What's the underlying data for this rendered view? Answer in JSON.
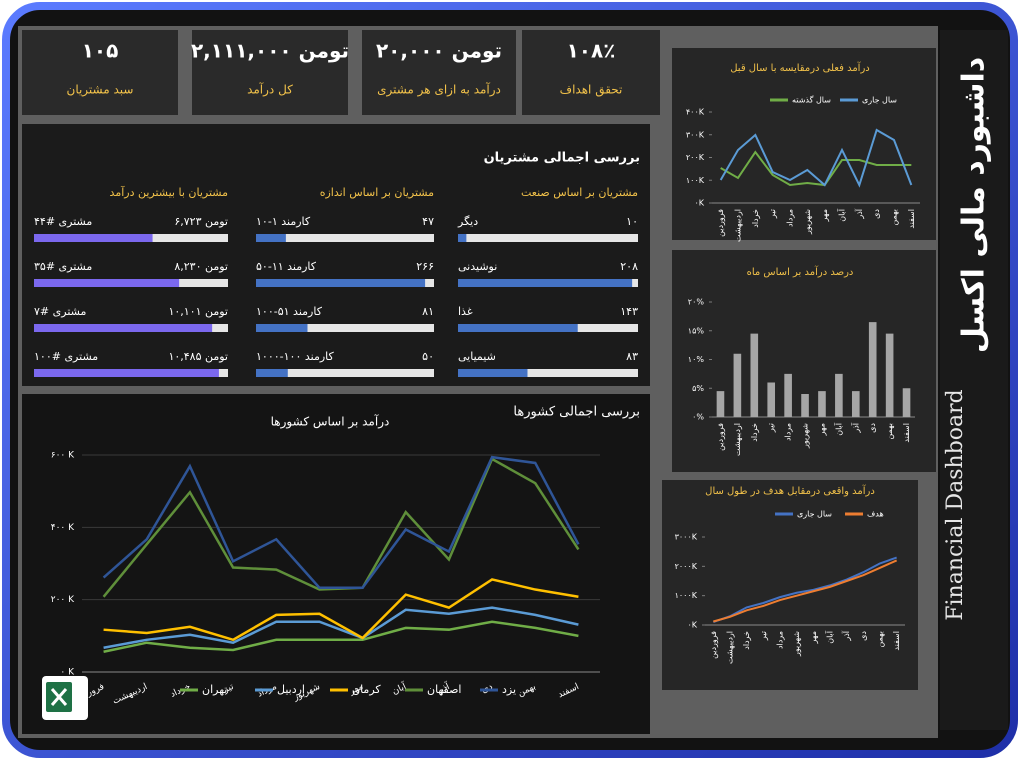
{
  "dashboard": {
    "title": "داشبورد مالی اکسل",
    "subtitle": "Financial Dashboard"
  },
  "kpis": [
    {
      "value": "۱۰۵",
      "label": "سبد مشتریان"
    },
    {
      "value": "تومن ۲,۱۱۱,۰۰۰",
      "label": "کل درآمد"
    },
    {
      "value": "تومن ۲۰,۰۰۰",
      "label": "درآمد به ازای هر مشتری"
    },
    {
      "value": "۱۰۸٪",
      "label": "تحقق اهداف"
    }
  ],
  "customers": {
    "title": "بررسی اجمالی مشتریان",
    "groups": [
      {
        "title": "مشتریان بر اساس صنعت",
        "color": "#4472c4",
        "xlim": [
          0,
          215
        ],
        "items": [
          {
            "name": "دیگر",
            "value": 10,
            "label": "۱۰"
          },
          {
            "name": "نوشیدنی",
            "value": 208,
            "label": "۲۰۸"
          },
          {
            "name": "غذا",
            "value": 143,
            "label": "۱۴۳"
          },
          {
            "name": "شیمیایی",
            "value": 83,
            "label": "۸۳"
          }
        ]
      },
      {
        "title": "مشتریان بر اساس اندازه",
        "color": "#4472c4",
        "xlim": [
          0,
          280
        ],
        "items": [
          {
            "name": "کارمند ۱-۱۰",
            "value": 47,
            "label": "۴۷"
          },
          {
            "name": "کارمند ۱۱-۵۰",
            "value": 266,
            "label": "۲۶۶"
          },
          {
            "name": "کارمند ۵۱-۱۰۰",
            "value": 81,
            "label": "۸۱"
          },
          {
            "name": "کارمند ۱۰۰-۱۰۰۰",
            "value": 50,
            "label": "۵۰"
          }
        ]
      },
      {
        "title": "مشتریان با بیشترین درآمد",
        "color": "#7b68ee",
        "xlim": [
          0,
          11000
        ],
        "items": [
          {
            "name": "مشتری #۴۴",
            "value": 6723,
            "label": "تومن ۶,۷۲۳"
          },
          {
            "name": "مشتری #۳۵",
            "value": 8230,
            "label": "تومن ۸,۲۳۰"
          },
          {
            "name": "مشتری #۷",
            "value": 10101,
            "label": "تومن ۱۰,۱۰۱"
          },
          {
            "name": "مشتری #۱۰۰",
            "value": 10485,
            "label": "تومن ۱۰,۴۸۵"
          }
        ]
      }
    ]
  },
  "countries_title": "بررسی اجمالی کشورها",
  "chart_data": [
    {
      "type": "line",
      "title": "درآمد بر اساس کشورها",
      "legend": "bottom",
      "grid": true,
      "categories": [
        "فروردین",
        "اردیبهشت",
        "خرداد",
        "تیر",
        "مرداد",
        "شهریور",
        "مهر",
        "آبان",
        "آذر",
        "دی",
        "بهمن",
        "اسفند"
      ],
      "ylim": [
        0,
        600
      ],
      "yticks": [
        {
          "value": 0,
          "label": "۰ K"
        },
        {
          "value": 200,
          "label": "۲۰۰ K"
        },
        {
          "value": 400,
          "label": "۴۰۰ K"
        },
        {
          "value": 600,
          "label": "۶۰۰ K"
        }
      ],
      "series": [
        {
          "name": "تهران",
          "color": "#70ad47",
          "values": [
            56,
            81,
            67,
            61,
            89,
            89,
            89,
            122,
            117,
            139,
            122,
            100
          ]
        },
        {
          "name": "اردبیل",
          "color": "#5b9bd5",
          "values": [
            67,
            89,
            103,
            81,
            139,
            139,
            94,
            172,
            161,
            178,
            158,
            131
          ]
        },
        {
          "name": "کرمان",
          "color": "#ffc000",
          "values": [
            117,
            108,
            125,
            89,
            158,
            161,
            94,
            214,
            178,
            256,
            228,
            208
          ]
        },
        {
          "name": "اصفهان",
          "color": "#5f8f3a",
          "values": [
            208,
            353,
            497,
            289,
            283,
            228,
            233,
            442,
            311,
            589,
            522,
            339
          ]
        },
        {
          "name": "یزد",
          "color": "#2f5597",
          "values": [
            261,
            367,
            569,
            306,
            367,
            233,
            233,
            394,
            333,
            594,
            578,
            353
          ]
        }
      ]
    },
    {
      "type": "line",
      "title": "درآمد فعلی درمقایسه با سال قبل",
      "legend": "top",
      "grid": false,
      "categories": [
        "فروردین",
        "اردیبهشت",
        "خرداد",
        "تیر",
        "مرداد",
        "شهریور",
        "مهر",
        "آبان",
        "آذر",
        "دی",
        "بهمن",
        "اسفند"
      ],
      "ylim": [
        0,
        400
      ],
      "yticks": [
        {
          "value": 0,
          "label": "۰K"
        },
        {
          "value": 100,
          "label": "۱۰۰K"
        },
        {
          "value": 200,
          "label": "۲۰۰K"
        },
        {
          "value": 300,
          "label": "۳۰۰K"
        },
        {
          "value": 400,
          "label": "۴۰۰K"
        }
      ],
      "series": [
        {
          "name": "سال گذشته",
          "color": "#70ad47",
          "values": [
            154,
            110,
            224,
            123,
            79,
            88,
            79,
            189,
            189,
            167,
            167,
            167
          ]
        },
        {
          "name": "سال جاری",
          "color": "#5b9bd5",
          "values": [
            101,
            233,
            299,
            136,
            101,
            145,
            79,
            233,
            79,
            321,
            277,
            79
          ]
        }
      ]
    },
    {
      "type": "bar",
      "title": "درصد درآمد بر اساس ماه",
      "color": "#a6a6a6",
      "categories": [
        "فروردین",
        "اردیبهشت",
        "خرداد",
        "تیر",
        "مرداد",
        "شهریور",
        "مهر",
        "آبان",
        "آذر",
        "دی",
        "بهمن",
        "اسفند"
      ],
      "values": [
        4.5,
        11,
        14.5,
        6,
        7.5,
        4,
        4.5,
        7.5,
        4.5,
        16.5,
        14.5,
        5
      ],
      "ylim": [
        0,
        20
      ],
      "yticks": [
        {
          "value": 0,
          "label": "۰%"
        },
        {
          "value": 5,
          "label": "۵%"
        },
        {
          "value": 10,
          "label": "۱۰%"
        },
        {
          "value": 15,
          "label": "۱۵%"
        },
        {
          "value": 20,
          "label": "۲۰%"
        }
      ]
    },
    {
      "type": "line",
      "title": "درآمد واقعی درمقابل هدف در طول سال",
      "legend": "top",
      "grid": false,
      "categories": [
        "فروردین",
        "اردیبهشت",
        "خرداد",
        "تیر",
        "مرداد",
        "شهریور",
        "مهر",
        "آبان",
        "آذر",
        "دی",
        "بهمن",
        "اسفند"
      ],
      "ylim": [
        0,
        3000
      ],
      "yticks": [
        {
          "value": 0,
          "label": "۰K"
        },
        {
          "value": 1000,
          "label": "۱۰۰۰K"
        },
        {
          "value": 2000,
          "label": "۲۰۰۰K"
        },
        {
          "value": 3000,
          "label": "۳۰۰۰K"
        }
      ],
      "series": [
        {
          "name": "سال جاری",
          "color": "#4472c4",
          "values": [
            100,
            300,
            600,
            750,
            950,
            1100,
            1200,
            1350,
            1550,
            1800,
            2100,
            2300
          ]
        },
        {
          "name": "هدف",
          "color": "#ed7d31",
          "values": [
            120,
            280,
            500,
            650,
            850,
            1000,
            1150,
            1300,
            1500,
            1700,
            1950,
            2200
          ]
        }
      ]
    }
  ]
}
